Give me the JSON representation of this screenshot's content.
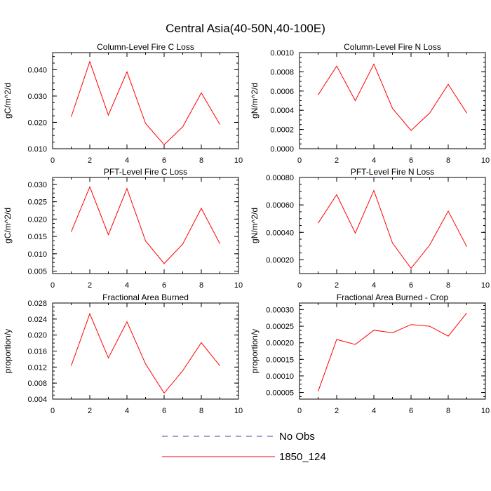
{
  "title": "Central Asia(40-50N,40-100E)",
  "legend": {
    "placement": "bottom-center",
    "entries": [
      {
        "label": "No Obs",
        "color": "#4a4aa8",
        "style": "dashed"
      },
      {
        "label": "1850_124",
        "color": "#ff0000",
        "style": "solid"
      }
    ]
  },
  "chart_data": [
    {
      "type": "line",
      "title": "Column-Level Fire C Loss",
      "ylabel": "gC/m^2/d",
      "xlim": [
        0,
        10
      ],
      "ylim": [
        0.01,
        0.0465
      ],
      "xticks": [
        0,
        2,
        4,
        6,
        8,
        10
      ],
      "xtick_labels": [
        "0",
        "2",
        "4",
        "6",
        "8",
        "10"
      ],
      "yticks": [
        0.01,
        0.02,
        0.03,
        0.04
      ],
      "ytick_labels": [
        "0.010",
        "0.020",
        "0.030",
        "0.040"
      ],
      "grid": false,
      "series": [
        {
          "name": "1850_124",
          "color": "#ff0000",
          "x": [
            1,
            2,
            3,
            4,
            5,
            6,
            7,
            8,
            9
          ],
          "values": [
            0.0221,
            0.0431,
            0.0228,
            0.0392,
            0.0196,
            0.0115,
            0.0183,
            0.0312,
            0.0192
          ]
        }
      ]
    },
    {
      "type": "line",
      "title": "Column-Level Fire N Loss",
      "ylabel": "gN/m^2/d",
      "xlim": [
        0,
        10
      ],
      "ylim": [
        0,
        0.001
      ],
      "xticks": [
        0,
        2,
        4,
        6,
        8,
        10
      ],
      "xtick_labels": [
        "0",
        "2",
        "4",
        "6",
        "8",
        "10"
      ],
      "yticks": [
        0,
        0.0002,
        0.0004,
        0.0006,
        0.0008,
        0.001
      ],
      "ytick_labels": [
        "0.0000",
        "0.0002",
        "0.0004",
        "0.0006",
        "0.0008",
        "0.0010"
      ],
      "grid": false,
      "series": [
        {
          "name": "1850_124",
          "color": "#ff0000",
          "x": [
            1,
            2,
            3,
            4,
            5,
            6,
            7,
            8,
            9
          ],
          "values": [
            0.00056,
            0.00086,
            0.0005,
            0.00088,
            0.00042,
            0.00019,
            0.00037,
            0.00067,
            0.00037
          ]
        }
      ]
    },
    {
      "type": "line",
      "title": "PFT-Level Fire C Loss",
      "ylabel": "gC/m^2/d",
      "xlim": [
        0,
        10
      ],
      "ylim": [
        0.0043,
        0.032
      ],
      "xticks": [
        0,
        2,
        4,
        6,
        8,
        10
      ],
      "xtick_labels": [
        "0",
        "2",
        "4",
        "6",
        "8",
        "10"
      ],
      "yticks": [
        0.005,
        0.01,
        0.015,
        0.02,
        0.025,
        0.03
      ],
      "ytick_labels": [
        "0.005",
        "0.010",
        "0.015",
        "0.020",
        "0.025",
        "0.030"
      ],
      "grid": false,
      "series": [
        {
          "name": "1850_124",
          "color": "#ff0000",
          "x": [
            1,
            2,
            3,
            4,
            5,
            6,
            7,
            8,
            9
          ],
          "values": [
            0.0163,
            0.0293,
            0.0155,
            0.0288,
            0.0137,
            0.0072,
            0.0128,
            0.0231,
            0.0129
          ]
        }
      ]
    },
    {
      "type": "line",
      "title": "PFT-Level Fire N Loss",
      "ylabel": "gN/m^2/d",
      "xlim": [
        0,
        10
      ],
      "ylim": [
        0.0001,
        0.0008
      ],
      "xticks": [
        0,
        2,
        4,
        6,
        8,
        10
      ],
      "xtick_labels": [
        "0",
        "2",
        "4",
        "6",
        "8",
        "10"
      ],
      "yticks": [
        0.0002,
        0.0004,
        0.0006,
        0.0008
      ],
      "ytick_labels": [
        "0.00020",
        "0.00040",
        "0.00060",
        "0.00080"
      ],
      "grid": false,
      "series": [
        {
          "name": "1850_124",
          "color": "#ff0000",
          "x": [
            1,
            2,
            3,
            4,
            5,
            6,
            7,
            8,
            9
          ],
          "values": [
            0.000467,
            0.000675,
            0.000395,
            0.000705,
            0.000323,
            0.000138,
            0.000307,
            0.000555,
            0.000295
          ]
        }
      ]
    },
    {
      "type": "line",
      "title": "Fractional Area Burned",
      "ylabel": "proportion/y",
      "xlim": [
        0,
        10
      ],
      "ylim": [
        0.004,
        0.028
      ],
      "xticks": [
        0,
        2,
        4,
        6,
        8,
        10
      ],
      "xtick_labels": [
        "0",
        "2",
        "4",
        "6",
        "8",
        "10"
      ],
      "yticks": [
        0.004,
        0.008,
        0.012,
        0.016,
        0.02,
        0.024,
        0.028
      ],
      "ytick_labels": [
        "0.004",
        "0.008",
        "0.012",
        "0.016",
        "0.020",
        "0.024",
        "0.028"
      ],
      "grid": false,
      "series": [
        {
          "name": "1850_124",
          "color": "#ff0000",
          "x": [
            1,
            2,
            3,
            4,
            5,
            6,
            7,
            8,
            9
          ],
          "values": [
            0.0123,
            0.0253,
            0.0143,
            0.0233,
            0.0128,
            0.0055,
            0.0111,
            0.0181,
            0.0123
          ]
        }
      ]
    },
    {
      "type": "line",
      "title": "Fractional Area Burned - Crop",
      "ylabel": "proportion/y",
      "xlim": [
        0,
        10
      ],
      "ylim": [
        3e-05,
        0.00032
      ],
      "xticks": [
        0,
        2,
        4,
        6,
        8,
        10
      ],
      "xtick_labels": [
        "0",
        "2",
        "4",
        "6",
        "8",
        "10"
      ],
      "yticks": [
        5e-05,
        0.0001,
        0.00015,
        0.0002,
        0.00025,
        0.0003
      ],
      "ytick_labels": [
        "0.00005",
        "0.00010",
        "0.00015",
        "0.00020",
        "0.00025",
        "0.00030"
      ],
      "grid": false,
      "series": [
        {
          "name": "1850_124",
          "color": "#ff0000",
          "x": [
            1,
            2,
            3,
            4,
            5,
            6,
            7,
            8,
            9
          ],
          "values": [
            5.3e-05,
            0.00021,
            0.000195,
            0.000238,
            0.00023,
            0.000255,
            0.00025,
            0.00022,
            0.00029
          ]
        }
      ]
    }
  ]
}
